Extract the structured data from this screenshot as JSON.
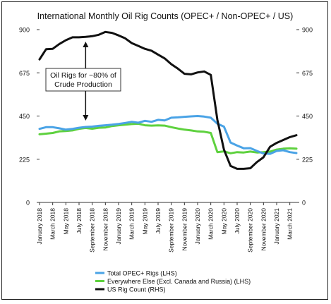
{
  "chart_data": {
    "type": "line",
    "title": "International Monthly Oil Rig Counts (OPEC+ / Non-OPEC+ / US)",
    "left_axis": {
      "ylim": [
        0,
        900
      ],
      "ticks": [
        0,
        225,
        450,
        675,
        900
      ]
    },
    "right_axis": {
      "ylim": [
        0,
        900
      ],
      "ticks": [
        0,
        225,
        450,
        675,
        900
      ]
    },
    "x_range": [
      "2018-01",
      "2021-04"
    ],
    "x_tick_labels": [
      "January 2018",
      "March 2018",
      "May 2018",
      "July 2018",
      "September 2018",
      "November 2018",
      "January 2019",
      "March 2019",
      "May 2019",
      "July 2019",
      "September 2019",
      "November 2019",
      "January 2020",
      "March 2020",
      "May 2020",
      "July 2020",
      "September 2020",
      "November 2020",
      "January 2021",
      "March 2021"
    ],
    "x_tick_dates": [
      "2018-01",
      "2018-03",
      "2018-05",
      "2018-07",
      "2018-09",
      "2018-11",
      "2019-01",
      "2019-03",
      "2019-05",
      "2019-07",
      "2019-09",
      "2019-11",
      "2020-01",
      "2020-03",
      "2020-05",
      "2020-07",
      "2020-09",
      "2020-11",
      "2021-01",
      "2021-03"
    ],
    "grid": false,
    "legend_placement": "bottom-left",
    "annotation": {
      "lines": [
        "Oil Rigs for ~80% of",
        "Crude Production"
      ],
      "arrow_up_date": "2018-08",
      "arrow_down_date": "2018-08"
    },
    "series": [
      {
        "name": "Total OPEC+ Rigs (LHS)",
        "axis": "left",
        "color": "#4aa3e6",
        "x": [
          "2018-01",
          "2018-02",
          "2018-03",
          "2018-04",
          "2018-05",
          "2018-06",
          "2018-07",
          "2018-08",
          "2018-09",
          "2018-10",
          "2018-11",
          "2018-12",
          "2019-01",
          "2019-02",
          "2019-03",
          "2019-04",
          "2019-05",
          "2019-06",
          "2019-07",
          "2019-08",
          "2019-09",
          "2019-10",
          "2019-11",
          "2019-12",
          "2020-01",
          "2020-02",
          "2020-03",
          "2020-04",
          "2020-05",
          "2020-06",
          "2020-07",
          "2020-08",
          "2020-09",
          "2020-10",
          "2020-11",
          "2020-12",
          "2021-01",
          "2021-02",
          "2021-03",
          "2021-04"
        ],
        "values": [
          383,
          392,
          392,
          386,
          379,
          383,
          389,
          393,
          395,
          399,
          402,
          405,
          409,
          414,
          420,
          415,
          425,
          420,
          430,
          427,
          441,
          443,
          446,
          448,
          450,
          447,
          441,
          410,
          395,
          312,
          296,
          282,
          283,
          268,
          255,
          253,
          268,
          272,
          262,
          257
        ]
      },
      {
        "name": "Everywhere Else (Excl. Canada and Russia) (LHS)",
        "axis": "left",
        "color": "#5ed13e",
        "x": [
          "2018-01",
          "2018-02",
          "2018-03",
          "2018-04",
          "2018-05",
          "2018-06",
          "2018-07",
          "2018-08",
          "2018-09",
          "2018-10",
          "2018-11",
          "2018-12",
          "2019-01",
          "2019-02",
          "2019-03",
          "2019-04",
          "2019-05",
          "2019-06",
          "2019-07",
          "2019-08",
          "2019-09",
          "2019-10",
          "2019-11",
          "2019-12",
          "2020-01",
          "2020-02",
          "2020-03",
          "2020-04",
          "2020-05",
          "2020-06",
          "2020-07",
          "2020-08",
          "2020-09",
          "2020-10",
          "2020-11",
          "2020-12",
          "2021-01",
          "2021-02",
          "2021-03",
          "2021-04"
        ],
        "values": [
          355,
          358,
          362,
          370,
          372,
          375,
          383,
          388,
          384,
          389,
          390,
          398,
          402,
          405,
          408,
          410,
          402,
          400,
          401,
          400,
          392,
          385,
          379,
          375,
          370,
          368,
          362,
          262,
          266,
          256,
          262,
          260,
          265,
          260,
          262,
          265,
          275,
          280,
          282,
          280
        ]
      },
      {
        "name": "US Rig Count (RHS)",
        "axis": "right",
        "color": "#111111",
        "x": [
          "2018-01",
          "2018-02",
          "2018-03",
          "2018-04",
          "2018-05",
          "2018-06",
          "2018-07",
          "2018-08",
          "2018-09",
          "2018-10",
          "2018-11",
          "2018-12",
          "2019-01",
          "2019-02",
          "2019-03",
          "2019-04",
          "2019-05",
          "2019-06",
          "2019-07",
          "2019-08",
          "2019-09",
          "2019-10",
          "2019-11",
          "2019-12",
          "2020-01",
          "2020-02",
          "2020-03",
          "2020-04",
          "2020-05",
          "2020-06",
          "2020-07",
          "2020-08",
          "2020-09",
          "2020-10",
          "2020-11",
          "2020-12",
          "2021-01",
          "2021-02",
          "2021-03",
          "2021-04"
        ],
        "values": [
          745,
          798,
          800,
          825,
          845,
          860,
          860,
          862,
          866,
          873,
          888,
          883,
          870,
          855,
          830,
          815,
          800,
          790,
          770,
          750,
          720,
          697,
          670,
          667,
          677,
          682,
          664,
          430,
          275,
          190,
          175,
          175,
          178,
          210,
          235,
          290,
          310,
          325,
          340,
          350
        ]
      }
    ]
  }
}
